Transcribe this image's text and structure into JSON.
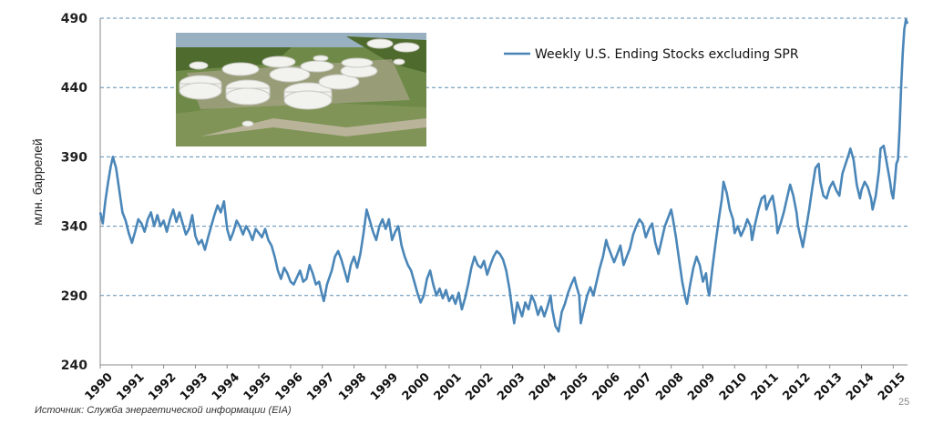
{
  "chart_data": {
    "type": "line",
    "ylabel": "млн. баррелей",
    "xlabel": "",
    "ylim": [
      240,
      490
    ],
    "yticks": [
      240,
      290,
      340,
      390,
      440,
      490
    ],
    "grid": "horizontal-dashed",
    "legend_position": "top-right",
    "x_tick_labels": [
      "1990",
      "1991",
      "1992",
      "1993",
      "1994",
      "1995",
      "1996",
      "1997",
      "1998",
      "1999",
      "2000",
      "2001",
      "2002",
      "2003",
      "2004",
      "2005",
      "2006",
      "2007",
      "2008",
      "2009",
      "2010",
      "2011",
      "2012",
      "2013",
      "2014",
      "2015"
    ],
    "xlim": [
      1990,
      2015.45
    ],
    "series": [
      {
        "name": "Weekly U.S. Ending Stocks excluding SPR",
        "color": "#4a86b8",
        "points": [
          [
            1990.0,
            350
          ],
          [
            1990.08,
            342
          ],
          [
            1990.16,
            358
          ],
          [
            1990.25,
            372
          ],
          [
            1990.33,
            383
          ],
          [
            1990.4,
            390
          ],
          [
            1990.5,
            382
          ],
          [
            1990.6,
            366
          ],
          [
            1990.7,
            350
          ],
          [
            1990.8,
            344
          ],
          [
            1990.9,
            335
          ],
          [
            1991.0,
            328
          ],
          [
            1991.1,
            336
          ],
          [
            1991.2,
            345
          ],
          [
            1991.3,
            342
          ],
          [
            1991.4,
            336
          ],
          [
            1991.5,
            345
          ],
          [
            1991.6,
            350
          ],
          [
            1991.7,
            340
          ],
          [
            1991.8,
            348
          ],
          [
            1991.9,
            340
          ],
          [
            1992.0,
            344
          ],
          [
            1992.1,
            336
          ],
          [
            1992.2,
            345
          ],
          [
            1992.3,
            352
          ],
          [
            1992.4,
            343
          ],
          [
            1992.5,
            350
          ],
          [
            1992.6,
            342
          ],
          [
            1992.7,
            334
          ],
          [
            1992.8,
            338
          ],
          [
            1992.9,
            348
          ],
          [
            1993.0,
            333
          ],
          [
            1993.1,
            327
          ],
          [
            1993.2,
            330
          ],
          [
            1993.3,
            323
          ],
          [
            1993.4,
            332
          ],
          [
            1993.5,
            340
          ],
          [
            1993.6,
            348
          ],
          [
            1993.7,
            355
          ],
          [
            1993.8,
            350
          ],
          [
            1993.9,
            358
          ],
          [
            1994.0,
            338
          ],
          [
            1994.1,
            330
          ],
          [
            1994.2,
            336
          ],
          [
            1994.3,
            344
          ],
          [
            1994.4,
            340
          ],
          [
            1994.5,
            334
          ],
          [
            1994.6,
            340
          ],
          [
            1994.7,
            336
          ],
          [
            1994.8,
            330
          ],
          [
            1994.9,
            338
          ],
          [
            1995.0,
            335
          ],
          [
            1995.1,
            332
          ],
          [
            1995.2,
            338
          ],
          [
            1995.3,
            330
          ],
          [
            1995.4,
            326
          ],
          [
            1995.5,
            318
          ],
          [
            1995.6,
            308
          ],
          [
            1995.7,
            302
          ],
          [
            1995.8,
            310
          ],
          [
            1995.9,
            306
          ],
          [
            1996.0,
            300
          ],
          [
            1996.1,
            298
          ],
          [
            1996.2,
            303
          ],
          [
            1996.3,
            308
          ],
          [
            1996.4,
            300
          ],
          [
            1996.5,
            302
          ],
          [
            1996.6,
            312
          ],
          [
            1996.7,
            306
          ],
          [
            1996.8,
            298
          ],
          [
            1996.9,
            300
          ],
          [
            1997.0,
            290
          ],
          [
            1997.05,
            286
          ],
          [
            1997.15,
            298
          ],
          [
            1997.3,
            308
          ],
          [
            1997.4,
            318
          ],
          [
            1997.5,
            322
          ],
          [
            1997.6,
            316
          ],
          [
            1997.7,
            308
          ],
          [
            1997.8,
            300
          ],
          [
            1997.9,
            312
          ],
          [
            1998.0,
            318
          ],
          [
            1998.1,
            310
          ],
          [
            1998.2,
            320
          ],
          [
            1998.3,
            335
          ],
          [
            1998.4,
            352
          ],
          [
            1998.5,
            344
          ],
          [
            1998.6,
            336
          ],
          [
            1998.7,
            330
          ],
          [
            1998.8,
            340
          ],
          [
            1998.9,
            345
          ],
          [
            1999.0,
            338
          ],
          [
            1999.1,
            345
          ],
          [
            1999.2,
            330
          ],
          [
            1999.3,
            336
          ],
          [
            1999.4,
            340
          ],
          [
            1999.5,
            326
          ],
          [
            1999.6,
            318
          ],
          [
            1999.7,
            312
          ],
          [
            1999.8,
            308
          ],
          [
            1999.9,
            300
          ],
          [
            2000.0,
            292
          ],
          [
            2000.1,
            285
          ],
          [
            2000.2,
            290
          ],
          [
            2000.3,
            302
          ],
          [
            2000.4,
            308
          ],
          [
            2000.5,
            298
          ],
          [
            2000.6,
            290
          ],
          [
            2000.7,
            295
          ],
          [
            2000.8,
            288
          ],
          [
            2000.9,
            294
          ],
          [
            2001.0,
            286
          ],
          [
            2001.1,
            290
          ],
          [
            2001.2,
            284
          ],
          [
            2001.3,
            292
          ],
          [
            2001.4,
            280
          ],
          [
            2001.5,
            288
          ],
          [
            2001.6,
            298
          ],
          [
            2001.7,
            310
          ],
          [
            2001.8,
            318
          ],
          [
            2001.9,
            312
          ],
          [
            2002.0,
            310
          ],
          [
            2002.1,
            315
          ],
          [
            2002.2,
            305
          ],
          [
            2002.3,
            312
          ],
          [
            2002.4,
            318
          ],
          [
            2002.5,
            322
          ],
          [
            2002.6,
            320
          ],
          [
            2002.7,
            316
          ],
          [
            2002.8,
            308
          ],
          [
            2002.9,
            295
          ],
          [
            2003.0,
            278
          ],
          [
            2003.05,
            270
          ],
          [
            2003.15,
            285
          ],
          [
            2003.3,
            275
          ],
          [
            2003.4,
            285
          ],
          [
            2003.5,
            280
          ],
          [
            2003.6,
            290
          ],
          [
            2003.7,
            285
          ],
          [
            2003.8,
            276
          ],
          [
            2003.9,
            282
          ],
          [
            2004.0,
            275
          ],
          [
            2004.1,
            282
          ],
          [
            2004.2,
            290
          ],
          [
            2004.25,
            280
          ],
          [
            2004.35,
            268
          ],
          [
            2004.45,
            264
          ],
          [
            2004.55,
            278
          ],
          [
            2004.65,
            284
          ],
          [
            2004.75,
            292
          ],
          [
            2004.85,
            298
          ],
          [
            2004.95,
            303
          ],
          [
            2005.0,
            298
          ],
          [
            2005.1,
            290
          ],
          [
            2005.15,
            270
          ],
          [
            2005.25,
            280
          ],
          [
            2005.35,
            290
          ],
          [
            2005.45,
            296
          ],
          [
            2005.55,
            290
          ],
          [
            2005.65,
            300
          ],
          [
            2005.75,
            310
          ],
          [
            2005.85,
            318
          ],
          [
            2005.95,
            330
          ],
          [
            2006.0,
            326
          ],
          [
            2006.1,
            320
          ],
          [
            2006.2,
            314
          ],
          [
            2006.3,
            320
          ],
          [
            2006.4,
            326
          ],
          [
            2006.5,
            312
          ],
          [
            2006.6,
            318
          ],
          [
            2006.7,
            324
          ],
          [
            2006.8,
            334
          ],
          [
            2006.9,
            340
          ],
          [
            2007.0,
            345
          ],
          [
            2007.1,
            342
          ],
          [
            2007.2,
            332
          ],
          [
            2007.3,
            338
          ],
          [
            2007.4,
            342
          ],
          [
            2007.5,
            328
          ],
          [
            2007.6,
            320
          ],
          [
            2007.7,
            330
          ],
          [
            2007.8,
            340
          ],
          [
            2007.9,
            346
          ],
          [
            2008.0,
            352
          ],
          [
            2008.05,
            346
          ],
          [
            2008.15,
            332
          ],
          [
            2008.25,
            316
          ],
          [
            2008.35,
            300
          ],
          [
            2008.45,
            288
          ],
          [
            2008.5,
            284
          ],
          [
            2008.6,
            298
          ],
          [
            2008.7,
            310
          ],
          [
            2008.8,
            318
          ],
          [
            2008.9,
            312
          ],
          [
            2009.0,
            300
          ],
          [
            2009.1,
            306
          ],
          [
            2009.15,
            295
          ],
          [
            2009.2,
            290
          ],
          [
            2009.3,
            310
          ],
          [
            2009.4,
            328
          ],
          [
            2009.5,
            345
          ],
          [
            2009.6,
            360
          ],
          [
            2009.65,
            372
          ],
          [
            2009.75,
            364
          ],
          [
            2009.85,
            352
          ],
          [
            2009.95,
            345
          ],
          [
            2010.0,
            335
          ],
          [
            2010.1,
            340
          ],
          [
            2010.2,
            333
          ],
          [
            2010.3,
            338
          ],
          [
            2010.4,
            345
          ],
          [
            2010.5,
            340
          ],
          [
            2010.55,
            330
          ],
          [
            2010.65,
            342
          ],
          [
            2010.75,
            352
          ],
          [
            2010.85,
            360
          ],
          [
            2010.95,
            362
          ],
          [
            2011.0,
            352
          ],
          [
            2011.1,
            358
          ],
          [
            2011.2,
            362
          ],
          [
            2011.3,
            348
          ],
          [
            2011.35,
            335
          ],
          [
            2011.45,
            342
          ],
          [
            2011.55,
            350
          ],
          [
            2011.65,
            360
          ],
          [
            2011.75,
            370
          ],
          [
            2011.85,
            362
          ],
          [
            2011.95,
            350
          ],
          [
            2012.0,
            340
          ],
          [
            2012.1,
            330
          ],
          [
            2012.15,
            325
          ],
          [
            2012.25,
            338
          ],
          [
            2012.35,
            352
          ],
          [
            2012.45,
            368
          ],
          [
            2012.55,
            382
          ],
          [
            2012.65,
            385
          ],
          [
            2012.7,
            372
          ],
          [
            2012.8,
            362
          ],
          [
            2012.9,
            360
          ],
          [
            2013.0,
            368
          ],
          [
            2013.1,
            372
          ],
          [
            2013.2,
            366
          ],
          [
            2013.3,
            362
          ],
          [
            2013.4,
            378
          ],
          [
            2013.5,
            385
          ],
          [
            2013.6,
            392
          ],
          [
            2013.65,
            396
          ],
          [
            2013.75,
            388
          ],
          [
            2013.85,
            370
          ],
          [
            2013.95,
            360
          ],
          [
            2014.0,
            366
          ],
          [
            2014.1,
            372
          ],
          [
            2014.2,
            368
          ],
          [
            2014.3,
            360
          ],
          [
            2014.35,
            352
          ],
          [
            2014.45,
            362
          ],
          [
            2014.55,
            380
          ],
          [
            2014.6,
            396
          ],
          [
            2014.7,
            398
          ],
          [
            2014.8,
            385
          ],
          [
            2014.9,
            372
          ],
          [
            2014.95,
            364
          ],
          [
            2015.0,
            360
          ],
          [
            2015.05,
            372
          ],
          [
            2015.1,
            385
          ],
          [
            2015.15,
            388
          ],
          [
            2015.2,
            410
          ],
          [
            2015.25,
            440
          ],
          [
            2015.3,
            465
          ],
          [
            2015.35,
            482
          ],
          [
            2015.4,
            489
          ],
          [
            2015.45,
            486
          ]
        ]
      }
    ],
    "source": "Источник: Служба энергетической информации (EIA)",
    "page_number": "25"
  }
}
